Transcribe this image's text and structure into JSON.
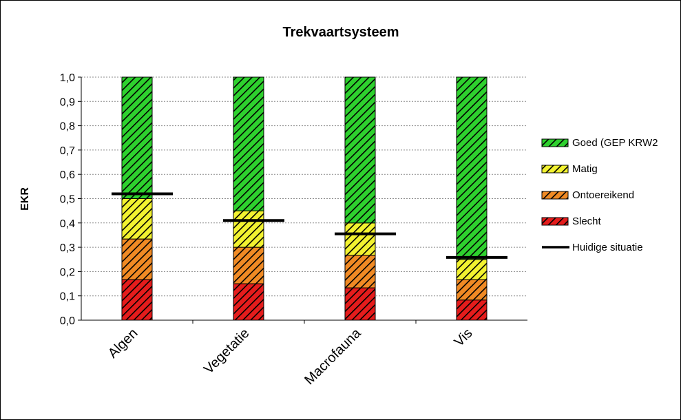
{
  "chart_data": {
    "type": "bar",
    "stacked": true,
    "title": "Trekvaartsysteem",
    "xlabel": "",
    "ylabel": "EKR",
    "ylim": [
      0,
      1
    ],
    "yticks": [
      "0,0",
      "0,1",
      "0,2",
      "0,3",
      "0,4",
      "0,5",
      "0,6",
      "0,7",
      "0,8",
      "0,9",
      "1,0"
    ],
    "grid": true,
    "legend_position": "right",
    "categories": [
      "Algen",
      "Vegetatie",
      "Macrofauna",
      "Vis"
    ],
    "series": [
      {
        "name": "Slecht",
        "color": "#e51c1c",
        "values": [
          0.167,
          0.15,
          0.133,
          0.083
        ]
      },
      {
        "name": "Ontoereikend",
        "color": "#f08a24",
        "values": [
          0.167,
          0.15,
          0.134,
          0.084
        ]
      },
      {
        "name": "Matig",
        "color": "#f2f230",
        "values": [
          0.166,
          0.15,
          0.133,
          0.083
        ]
      },
      {
        "name": "Goed (GEP KRW2",
        "color": "#2ed12e",
        "values": [
          0.5,
          0.55,
          0.6,
          0.75
        ]
      }
    ],
    "current_situation": {
      "name": "Huidige situatie",
      "color": "#000000",
      "values": [
        0.52,
        0.41,
        0.355,
        0.258
      ]
    },
    "legend_order": [
      "Goed (GEP KRW2",
      "Matig",
      "Ontoereikend",
      "Slecht",
      "Huidige situatie"
    ]
  }
}
